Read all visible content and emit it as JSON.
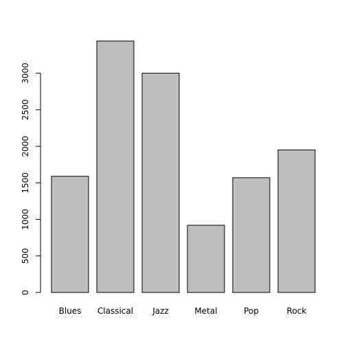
{
  "chart_data": {
    "type": "bar",
    "categories": [
      "Blues",
      "Classical",
      "Jazz",
      "Metal",
      "Pop",
      "Rock"
    ],
    "values": [
      1590,
      3440,
      3000,
      920,
      1570,
      1950
    ],
    "title": "",
    "xlabel": "",
    "ylabel": "",
    "ylim": [
      0,
      3440
    ],
    "yticks": [
      0,
      500,
      1000,
      1500,
      2000,
      2500,
      3000
    ],
    "grid": false,
    "bar_color": "#bebebe",
    "border_color": "#000000"
  }
}
